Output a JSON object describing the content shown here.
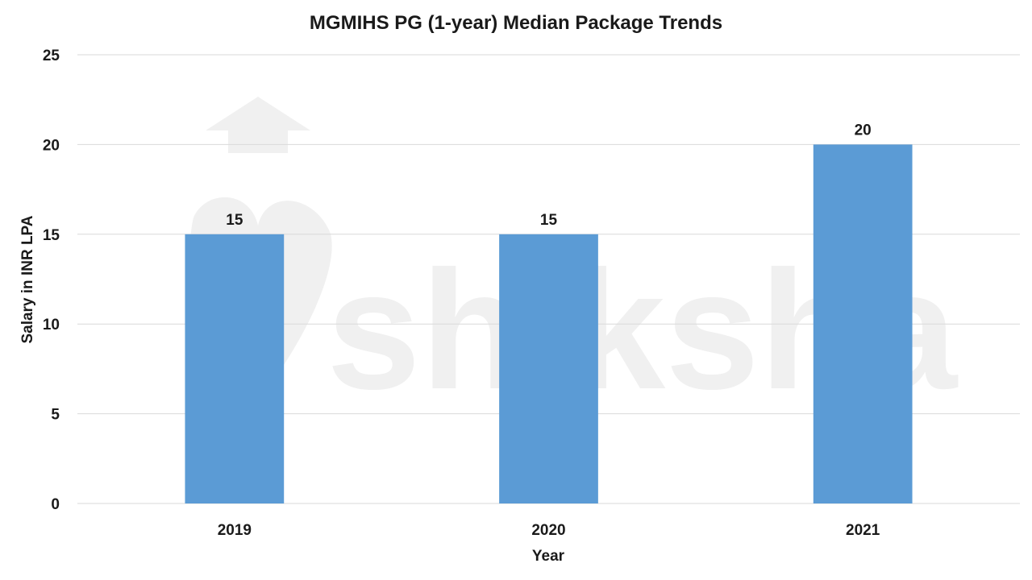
{
  "watermark": "shiksha",
  "chart_data": {
    "type": "bar",
    "title": "MGMIHS PG (1-year) Median Package Trends",
    "xlabel": "Year",
    "ylabel": "Salary in INR LPA",
    "categories": [
      "2019",
      "2020",
      "2021"
    ],
    "values": [
      15,
      15,
      20
    ],
    "ylim": [
      0,
      25
    ],
    "yticks": [
      0,
      5,
      10,
      15,
      20,
      25
    ],
    "grid": true,
    "legend": "none",
    "bar_color": "#5b9bd5",
    "data_labels": [
      "15",
      "15",
      "20"
    ]
  }
}
